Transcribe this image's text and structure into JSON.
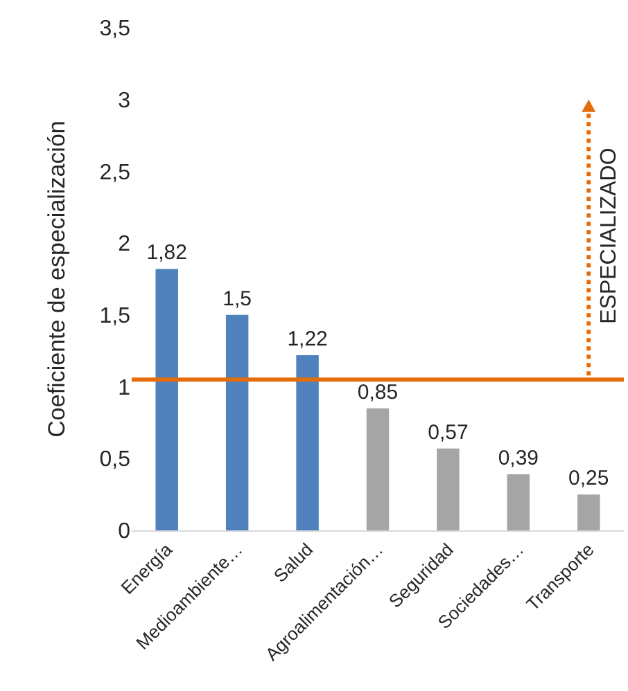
{
  "chart_data": {
    "type": "bar",
    "ylabel": "Coeficiente de especialización",
    "categories": [
      "Energía",
      "Medioambiente…",
      "Salud",
      "Agroalimentación…",
      "Seguridad",
      "Sociedades…",
      "Transporte"
    ],
    "values": [
      1.82,
      1.5,
      1.22,
      0.85,
      0.57,
      0.39,
      0.25
    ],
    "colors": [
      "#4f81bd",
      "#4f81bd",
      "#4f81bd",
      "#a5a5a5",
      "#a5a5a5",
      "#a5a5a5",
      "#a5a5a5"
    ],
    "value_labels": [
      "1,82",
      "1,5",
      "1,22",
      "0,85",
      "0,57",
      "0,39",
      "0,25"
    ],
    "ylim": [
      0,
      3.5
    ],
    "yticks": [
      0,
      {
        "value": 0.5,
        "label": "0,5"
      },
      1,
      {
        "value": 1.5,
        "label": "1,5"
      },
      2,
      {
        "value": 2.5,
        "label": "2,5"
      },
      3,
      {
        "value": 3.5,
        "label": "3,5"
      }
    ],
    "ref_lines": [
      {
        "axis": "y",
        "value": 1.05,
        "color": "#e46c0a"
      }
    ],
    "annotations": [
      "ESPECIALIZADO"
    ]
  }
}
